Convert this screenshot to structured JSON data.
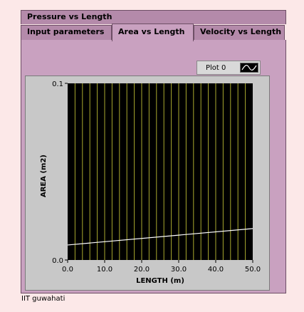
{
  "tabs": {
    "pressure": "Pressure vs Length",
    "input": "Input parameters",
    "area": "Area vs Length",
    "velocity": "Velocity vs Length"
  },
  "legend": {
    "plot_name": "Plot 0"
  },
  "footer": {
    "text": "IIT guwahati"
  },
  "colors": {
    "plot_bg": "#000000",
    "grid": "#c8c838",
    "line": "#ffffff",
    "panel": "#c9a1c0",
    "tab": "#b48aaa"
  },
  "chart_data": {
    "type": "line",
    "xlabel": "LENGTH  (m)",
    "ylabel": "AREA  (m2)",
    "xlim": [
      0,
      50
    ],
    "ylim": [
      0,
      0.1
    ],
    "x_ticks": [
      "0.0",
      "10.0",
      "20.0",
      "30.0",
      "40.0",
      "50.0"
    ],
    "y_ticks": [
      "0.0",
      "0.1"
    ],
    "x_grid_step": 2,
    "series": [
      {
        "name": "Plot 0",
        "x": [
          0,
          50
        ],
        "y": [
          0.0085,
          0.0178
        ]
      }
    ]
  }
}
